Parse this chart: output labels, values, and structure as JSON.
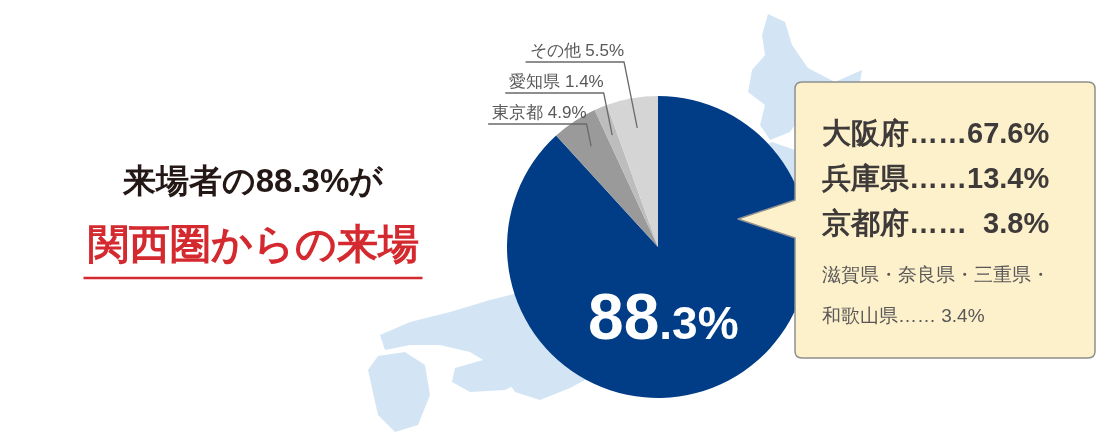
{
  "chart_data": {
    "type": "pie",
    "title": "来場者の88.3%が",
    "subtitle": "関西圏からの来場",
    "categories": [
      null,
      "東京都",
      "愛知県",
      "その他"
    ],
    "values": [
      88.3,
      4.9,
      1.4,
      5.5
    ],
    "value_labels": [
      "88.3%",
      "4.9%",
      "1.4%",
      "5.5%"
    ],
    "colors": [
      "#003d86",
      "#9a9a9a",
      "#bdbdbd",
      "#d5d5d5"
    ],
    "annotations": [
      "大阪府……67.6%",
      "兵庫県……13.4%",
      "京都府……  3.8%",
      "滋賀県・奈良県・三重県・和歌山県…… 3.4%"
    ]
  }
}
